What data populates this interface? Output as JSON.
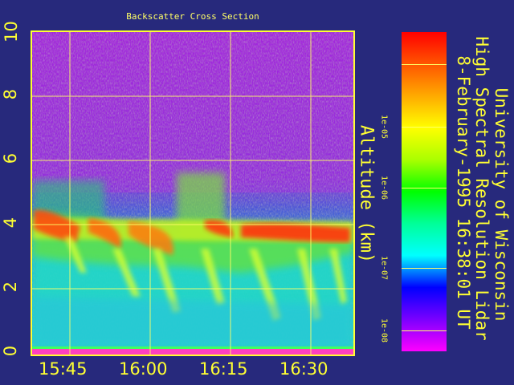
{
  "title": "Backscatter Cross Section",
  "ylabel": "Altitude (km)",
  "side_text": [
    "University of Wisconsin",
    "High Spectral Resolution Lidar",
    "8-February-1995 16:38:01 UT"
  ],
  "colorbar": {
    "ticks": [
      "1e-05",
      "1e-06",
      "1e-07",
      "1e-08"
    ],
    "colors": [
      "#ff00ff",
      "#7a00ff",
      "#0000ff",
      "#00ffff",
      "#00ff99",
      "#00ff00",
      "#aaff00",
      "#ffff00",
      "#ffaa00",
      "#ff5500",
      "#ff0000"
    ]
  },
  "chart_data": {
    "type": "heatmap",
    "title": "Backscatter Cross Section",
    "ylabel": "Altitude (km)",
    "ylim": [
      0,
      10
    ],
    "yticks": [
      "0",
      "2",
      "4",
      "6",
      "8",
      "10"
    ],
    "xticks": [
      "15:45",
      "16:00",
      "16:15",
      "16:30"
    ],
    "color_scale": [
      "1e-08",
      "1e-07",
      "1e-06",
      "1e-05"
    ],
    "features": {
      "cloud_top_km": 4.0,
      "high_backscatter_km": [
        2.3,
        4.2
      ],
      "noise_above_km": 5.0
    }
  }
}
